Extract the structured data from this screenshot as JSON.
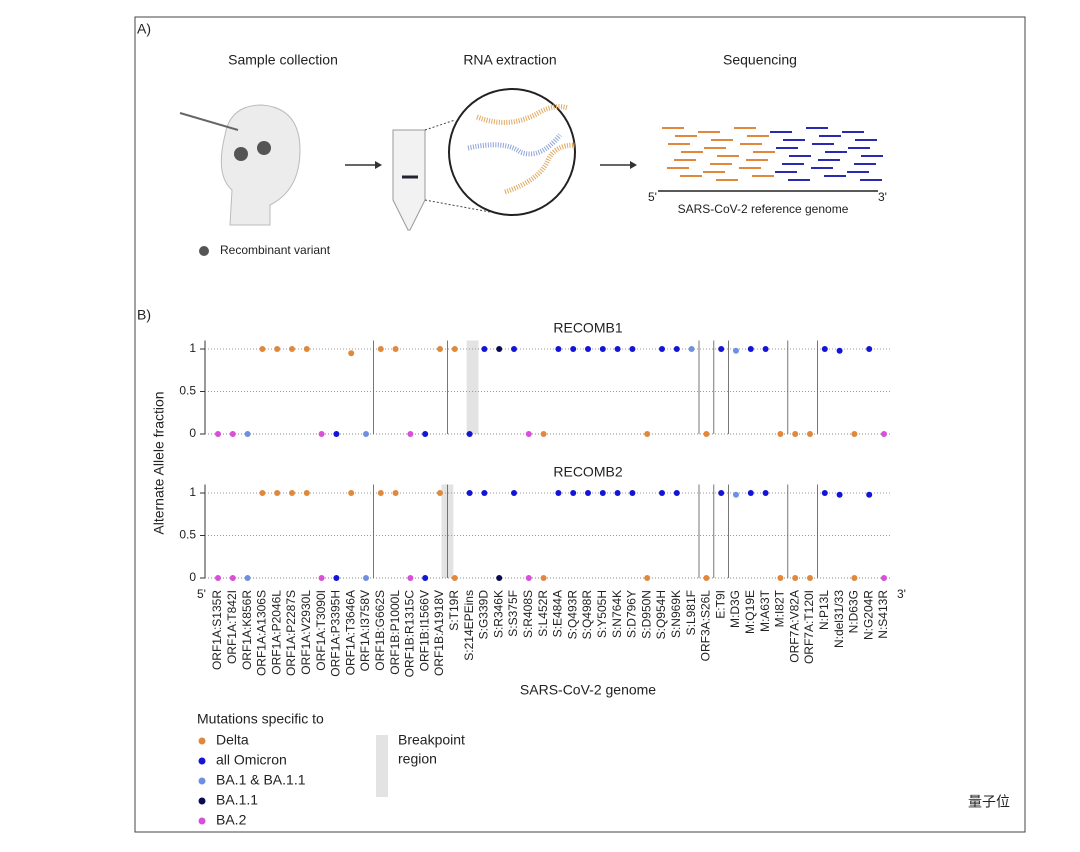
{
  "panel_a": {
    "label": "A)",
    "steps": [
      "Sample collection",
      "RNA extraction",
      "Sequencing"
    ],
    "variant_legend": "Recombinant variant",
    "genome_start": "5'",
    "genome_end": "3'",
    "genome_label": "SARS-CoV-2 reference genome"
  },
  "panel_b_label": "B)",
  "y_axis_label": "Alternate Allele fraction",
  "x_axis_label": "SARS-CoV-2 genome",
  "x_start": "5'",
  "x_end": "3'",
  "legend": {
    "title": "Mutations specific to",
    "items": [
      {
        "name": "Delta",
        "color": "#e0893d"
      },
      {
        "name": "all Omicron",
        "color": "#1414d6"
      },
      {
        "name": "BA.1 & BA.1.1",
        "color": "#6f8fe3"
      },
      {
        "name": "BA.1.1",
        "color": "#0a0a52"
      },
      {
        "name": "BA.2",
        "color": "#d84fd8"
      }
    ],
    "breakpoint": [
      "Breakpoint",
      "region"
    ],
    "breakpoint_color": "#e3e3e3"
  },
  "mutation_groups": [
    4,
    4,
    2,
    0,
    0,
    0,
    0,
    4,
    1,
    0,
    2,
    0,
    0,
    4,
    1,
    0,
    0,
    1,
    1,
    3,
    1,
    4,
    0,
    1,
    1,
    1,
    1,
    1,
    1,
    0,
    1,
    1,
    2,
    0,
    1,
    2,
    1,
    1,
    0,
    0,
    0,
    1,
    1,
    0,
    1,
    4
  ],
  "gene_boundaries": [
    10.5,
    15.5,
    32.5,
    33.5,
    34.5,
    38.5,
    40.5
  ],
  "watermark": "量子位",
  "chart_data": [
    {
      "type": "scatter",
      "title": "RECOMB1",
      "ylim": [
        0,
        1.1
      ],
      "yticks": [
        0,
        0.5,
        1
      ],
      "grid": true,
      "breakpoint": [
        16.8,
        17.6
      ],
      "values": [
        0,
        0,
        0,
        1,
        1,
        1,
        1,
        0,
        0,
        0.95,
        0,
        1,
        1,
        0,
        0,
        1,
        1,
        0,
        1,
        1,
        1,
        0,
        0,
        1,
        1,
        1,
        1,
        1,
        1,
        0,
        1,
        1,
        1,
        0,
        1,
        0.98,
        1,
        1,
        0,
        0,
        0,
        1,
        0.98,
        0,
        1,
        0
      ]
    },
    {
      "type": "scatter",
      "title": "RECOMB2",
      "ylim": [
        0,
        1.1
      ],
      "yticks": [
        0,
        0.5,
        1
      ],
      "grid": true,
      "breakpoint": [
        15.1,
        15.9
      ],
      "categories": [
        "ORF1A:S135R",
        "ORF1A:T842I",
        "ORF1A:K856R",
        "ORF1A:A1306S",
        "ORF1A:P2046L",
        "ORF1A:P2287S",
        "ORF1A:V2930L",
        "ORF1A:T3090I",
        "ORF1A:P3395H",
        "ORF1A:T3646A",
        "ORF1A:I3758V",
        "ORF1B:G662S",
        "ORF1B:P1000L",
        "ORF1B:R1315C",
        "ORF1B:I1566V",
        "ORF1B:A1918V",
        "S:T19R",
        "S:214EPEins",
        "S:G339D",
        "S:R346K",
        "S:S375F",
        "S:R408S",
        "S:L452R",
        "S:E484A",
        "S:Q493R",
        "S:Q498R",
        "S:Y505H",
        "S:N764K",
        "S:D796Y",
        "S:D950N",
        "S:Q954H",
        "S:N969K",
        "S:L981F",
        "ORF3A:S26L",
        "E:T9I",
        "M:D3G",
        "M:Q19E",
        "M:A63T",
        "M:I82T",
        "ORF7A:V82A",
        "ORF7A:T120I",
        "N:P13L",
        "N:del31/33",
        "N:D63G",
        "N:G204R",
        "N:S413R"
      ],
      "values": [
        0,
        0,
        0,
        1,
        1,
        1,
        1,
        0,
        0,
        1,
        0,
        1,
        1,
        0,
        0,
        1,
        0,
        1,
        1,
        0,
        1,
        0,
        0,
        1,
        1,
        1,
        1,
        1,
        1,
        0,
        1,
        1,
        null,
        0,
        1,
        0.98,
        1,
        1,
        0,
        0,
        0,
        1,
        0.98,
        0,
        0.98,
        0
      ]
    }
  ]
}
